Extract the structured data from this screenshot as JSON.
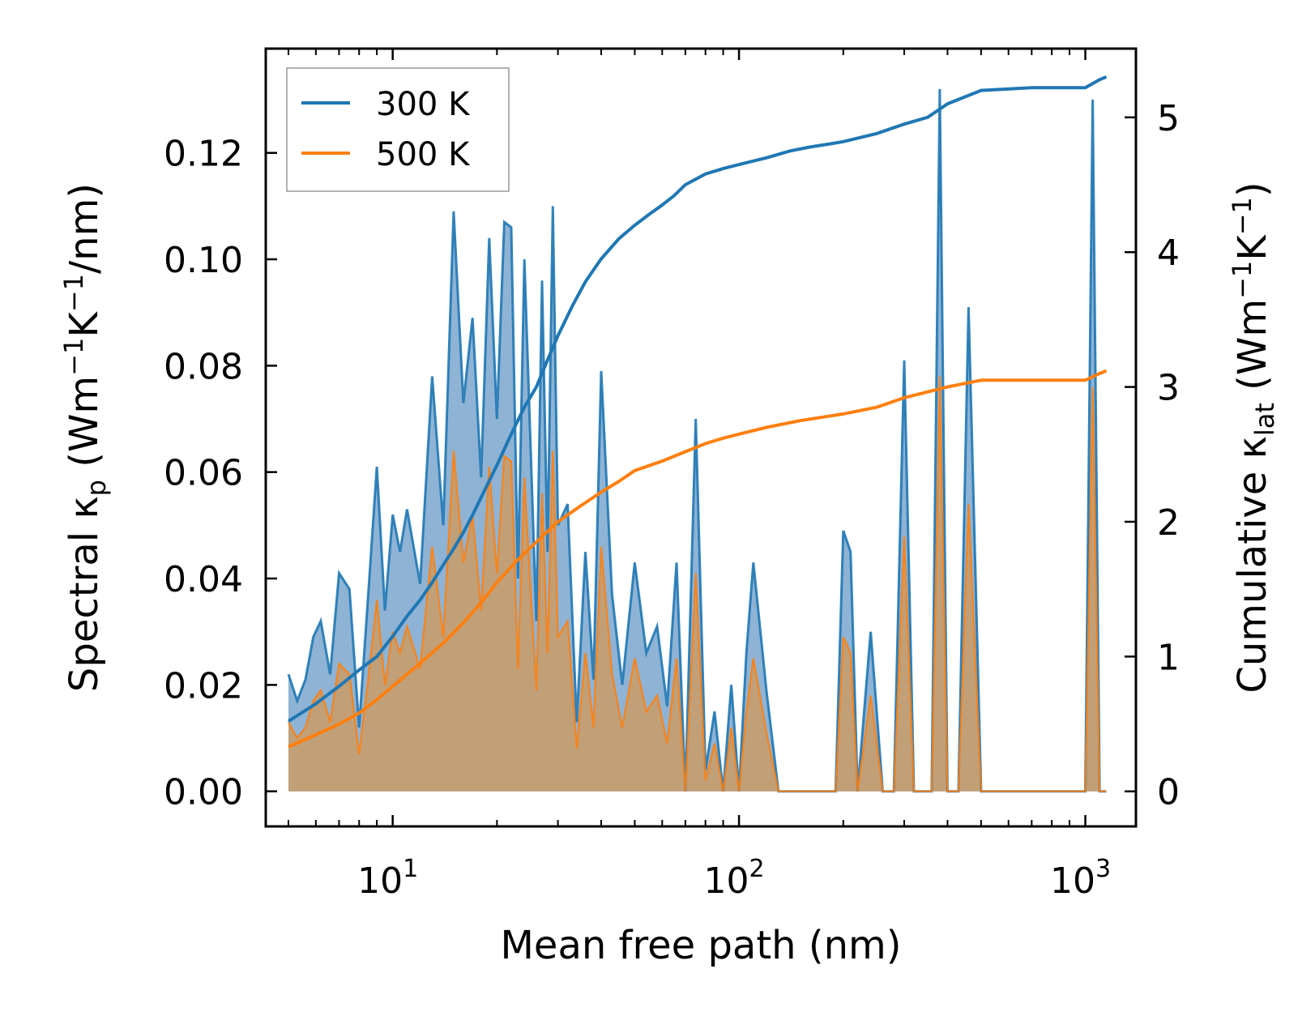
{
  "chart_data": {
    "type": "line",
    "xlabel": "Mean free path (nm)",
    "xscale": "log",
    "xlim": [
      4.3,
      1400
    ],
    "x_ticks": [
      {
        "value": 10,
        "base": "10",
        "exp": "1"
      },
      {
        "value": 100,
        "base": "10",
        "exp": "2"
      },
      {
        "value": 1000,
        "base": "10",
        "exp": "3"
      }
    ],
    "ylabel_left": {
      "prefix": "Spectral κ",
      "sub": "p",
      "unit_prefix": " (Wm",
      "unit_exp1": "−1",
      "unit_mid": "K",
      "unit_exp2": "−1",
      "unit_suffix": "/nm)"
    },
    "ylabel_right": {
      "prefix": "Cumulative κ",
      "sub": "lat",
      "unit_prefix": " (Wm",
      "unit_exp1": "−1",
      "unit_mid": "K",
      "unit_exp2": "−1",
      "unit_suffix": ")"
    },
    "ylim_left": [
      -0.0066,
      0.1396
    ],
    "ylim_right": [
      -0.26,
      5.51
    ],
    "y_ticks_left": [
      "0.00",
      "0.02",
      "0.04",
      "0.06",
      "0.08",
      "0.10",
      "0.12"
    ],
    "y_ticks_right": [
      "0",
      "1",
      "2",
      "3",
      "4",
      "5"
    ],
    "legend": {
      "position": "top-left",
      "entries": [
        "300 K",
        "500 K"
      ]
    },
    "colors": {
      "300 K": "#1f77b4",
      "500 K": "#ff7f0e",
      "fill_300": "#7aa6cc",
      "fill_500": "#c69c6d"
    },
    "series_spectral": [
      {
        "name": "300 K",
        "x": [
          5,
          5.3,
          5.6,
          5.9,
          6.2,
          6.6,
          7,
          7.5,
          8,
          8.5,
          9,
          9.5,
          10,
          10.5,
          11,
          12,
          13,
          14,
          15,
          16,
          17,
          18,
          19,
          20,
          21,
          22,
          23,
          24,
          25,
          26,
          27,
          28,
          29,
          30,
          32,
          34,
          36,
          38,
          40,
          43,
          46,
          50,
          54,
          58,
          62,
          66,
          70,
          75,
          80,
          85,
          90,
          95,
          100,
          105,
          110,
          120,
          130,
          140,
          150,
          160,
          170,
          180,
          190,
          200,
          210,
          220,
          240,
          260,
          280,
          300,
          320,
          340,
          360,
          380,
          400,
          430,
          460,
          500,
          1000,
          1050,
          1100,
          1150
        ],
        "y": [
          0.022,
          0.017,
          0.021,
          0.029,
          0.032,
          0.022,
          0.041,
          0.038,
          0.012,
          0.037,
          0.061,
          0.034,
          0.052,
          0.045,
          0.053,
          0.039,
          0.078,
          0.05,
          0.109,
          0.073,
          0.089,
          0.059,
          0.104,
          0.07,
          0.107,
          0.106,
          0.04,
          0.1,
          0.065,
          0.032,
          0.096,
          0.045,
          0.11,
          0.05,
          0.054,
          0.013,
          0.045,
          0.021,
          0.079,
          0.037,
          0.02,
          0.043,
          0.026,
          0.031,
          0.016,
          0.043,
          0.0,
          0.07,
          0.004,
          0.015,
          0.0,
          0.02,
          0.0,
          0.026,
          0.043,
          0.019,
          0.0,
          0.0,
          0.0,
          0.0,
          0.0,
          0.0,
          0.0,
          0.049,
          0.045,
          0.0,
          0.03,
          0.0,
          0.0,
          0.081,
          0.0,
          0.0,
          0.0,
          0.132,
          0.0,
          0.0,
          0.091,
          0.0,
          0.0,
          0.13,
          0.0,
          0.0
        ]
      },
      {
        "name": "500 K",
        "x": [
          5,
          5.3,
          5.6,
          5.9,
          6.2,
          6.6,
          7,
          7.5,
          8,
          8.5,
          9,
          9.5,
          10,
          10.5,
          11,
          12,
          13,
          14,
          15,
          16,
          17,
          18,
          19,
          20,
          21,
          22,
          23,
          24,
          25,
          26,
          27,
          28,
          29,
          30,
          32,
          34,
          36,
          38,
          40,
          43,
          46,
          50,
          54,
          58,
          62,
          66,
          70,
          75,
          80,
          85,
          90,
          95,
          100,
          105,
          110,
          120,
          130,
          140,
          150,
          160,
          170,
          180,
          190,
          200,
          210,
          220,
          240,
          260,
          280,
          300,
          320,
          340,
          360,
          380,
          400,
          430,
          460,
          500,
          1000,
          1050,
          1100,
          1150
        ],
        "y": [
          0.013,
          0.01,
          0.012,
          0.017,
          0.019,
          0.013,
          0.024,
          0.022,
          0.007,
          0.021,
          0.036,
          0.02,
          0.03,
          0.026,
          0.031,
          0.023,
          0.046,
          0.029,
          0.064,
          0.043,
          0.052,
          0.034,
          0.061,
          0.041,
          0.063,
          0.062,
          0.023,
          0.059,
          0.038,
          0.019,
          0.056,
          0.026,
          0.064,
          0.029,
          0.032,
          0.008,
          0.026,
          0.012,
          0.046,
          0.022,
          0.012,
          0.025,
          0.015,
          0.018,
          0.009,
          0.025,
          0.0,
          0.041,
          0.002,
          0.009,
          0.0,
          0.012,
          0.0,
          0.015,
          0.025,
          0.011,
          0.0,
          0.0,
          0.0,
          0.0,
          0.0,
          0.0,
          0.0,
          0.029,
          0.026,
          0.0,
          0.018,
          0.0,
          0.0,
          0.048,
          0.0,
          0.0,
          0.0,
          0.078,
          0.0,
          0.0,
          0.054,
          0.0,
          0.0,
          0.076,
          0.0,
          0.0
        ]
      }
    ],
    "series_cumulative": [
      {
        "name": "300 K",
        "x": [
          5,
          6,
          7,
          8,
          9,
          10,
          11,
          12,
          13,
          14,
          15,
          16,
          17,
          18,
          20,
          22,
          24,
          26,
          28,
          30,
          33,
          36,
          40,
          45,
          50,
          55,
          60,
          65,
          70,
          80,
          90,
          100,
          120,
          140,
          160,
          180,
          200,
          250,
          300,
          350,
          400,
          500,
          700,
          1000,
          1100,
          1150
        ],
        "y": [
          0.52,
          0.65,
          0.78,
          0.9,
          1.0,
          1.15,
          1.3,
          1.42,
          1.55,
          1.68,
          1.8,
          1.92,
          2.05,
          2.18,
          2.42,
          2.65,
          2.85,
          3.0,
          3.2,
          3.38,
          3.6,
          3.78,
          3.95,
          4.1,
          4.2,
          4.28,
          4.35,
          4.42,
          4.5,
          4.58,
          4.62,
          4.65,
          4.7,
          4.75,
          4.78,
          4.8,
          4.82,
          4.88,
          4.95,
          5.0,
          5.1,
          5.2,
          5.22,
          5.22,
          5.28,
          5.3
        ]
      },
      {
        "name": "500 K",
        "x": [
          5,
          6,
          7,
          8,
          9,
          10,
          12,
          14,
          16,
          18,
          20,
          23,
          26,
          30,
          35,
          40,
          45,
          50,
          60,
          70,
          80,
          90,
          100,
          120,
          150,
          200,
          250,
          300,
          400,
          500,
          1000,
          1100,
          1150
        ],
        "y": [
          0.33,
          0.42,
          0.5,
          0.58,
          0.68,
          0.78,
          0.95,
          1.1,
          1.25,
          1.4,
          1.55,
          1.72,
          1.85,
          2.0,
          2.12,
          2.22,
          2.3,
          2.38,
          2.45,
          2.52,
          2.58,
          2.62,
          2.65,
          2.7,
          2.75,
          2.8,
          2.85,
          2.92,
          3.0,
          3.05,
          3.05,
          3.1,
          3.12
        ]
      }
    ]
  }
}
